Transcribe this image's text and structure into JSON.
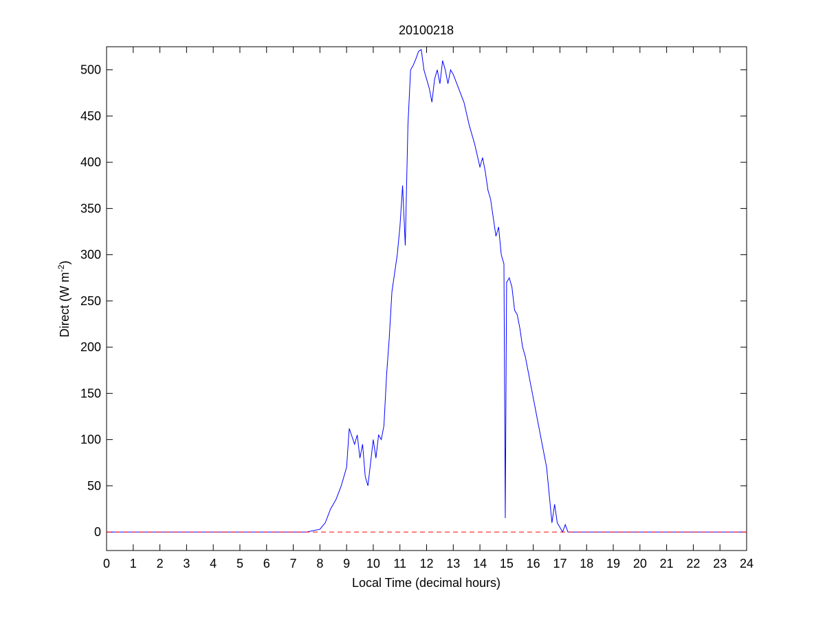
{
  "chart_data": {
    "type": "line",
    "title": "20100218",
    "xlabel": "Local Time (decimal hours)",
    "ylabel": "Direct (W m",
    "ylabel_superscript": "-2",
    "ylabel_suffix": ")",
    "xlim": [
      0,
      24
    ],
    "ylim": [
      -20,
      525
    ],
    "xticks": [
      0,
      1,
      2,
      3,
      4,
      5,
      6,
      7,
      8,
      9,
      10,
      11,
      12,
      13,
      14,
      15,
      16,
      17,
      18,
      19,
      20,
      21,
      22,
      23,
      24
    ],
    "yticks": [
      0,
      50,
      100,
      150,
      200,
      250,
      300,
      350,
      400,
      450,
      500
    ],
    "reference_line": {
      "value": 0,
      "color": "#ff0000",
      "style": "dashed"
    },
    "series": [
      {
        "color": "#0000ff",
        "x": [
          0,
          7.5,
          8.0,
          8.2,
          8.4,
          8.6,
          8.8,
          9.0,
          9.1,
          9.3,
          9.4,
          9.5,
          9.6,
          9.7,
          9.8,
          9.9,
          10.0,
          10.1,
          10.2,
          10.3,
          10.4,
          10.5,
          10.6,
          10.7,
          10.8,
          10.9,
          11.0,
          11.1,
          11.2,
          11.3,
          11.4,
          11.5,
          11.6,
          11.7,
          11.8,
          11.9,
          12.0,
          12.1,
          12.2,
          12.3,
          12.4,
          12.5,
          12.6,
          12.7,
          12.8,
          12.9,
          13.0,
          13.2,
          13.4,
          13.6,
          13.8,
          14.0,
          14.1,
          14.2,
          14.3,
          14.4,
          14.5,
          14.6,
          14.7,
          14.8,
          14.9,
          14.95,
          15.0,
          15.1,
          15.2,
          15.3,
          15.4,
          15.5,
          15.6,
          15.7,
          15.8,
          15.9,
          16.0,
          16.1,
          16.2,
          16.3,
          16.4,
          16.5,
          16.6,
          16.7,
          16.8,
          16.9,
          17.0,
          17.1,
          17.2,
          17.3,
          24
        ],
        "values": [
          0,
          0,
          3,
          10,
          25,
          35,
          50,
          70,
          112,
          95,
          105,
          80,
          95,
          60,
          50,
          75,
          100,
          80,
          105,
          100,
          115,
          170,
          210,
          260,
          280,
          300,
          330,
          375,
          310,
          440,
          500,
          505,
          512,
          520,
          522,
          500,
          490,
          480,
          465,
          490,
          500,
          485,
          510,
          500,
          485,
          500,
          495,
          480,
          465,
          440,
          420,
          395,
          405,
          390,
          370,
          360,
          340,
          320,
          330,
          300,
          290,
          15,
          270,
          275,
          265,
          240,
          235,
          220,
          200,
          190,
          175,
          160,
          145,
          130,
          115,
          100,
          85,
          70,
          40,
          10,
          30,
          10,
          5,
          0,
          8,
          0,
          0
        ]
      }
    ]
  }
}
